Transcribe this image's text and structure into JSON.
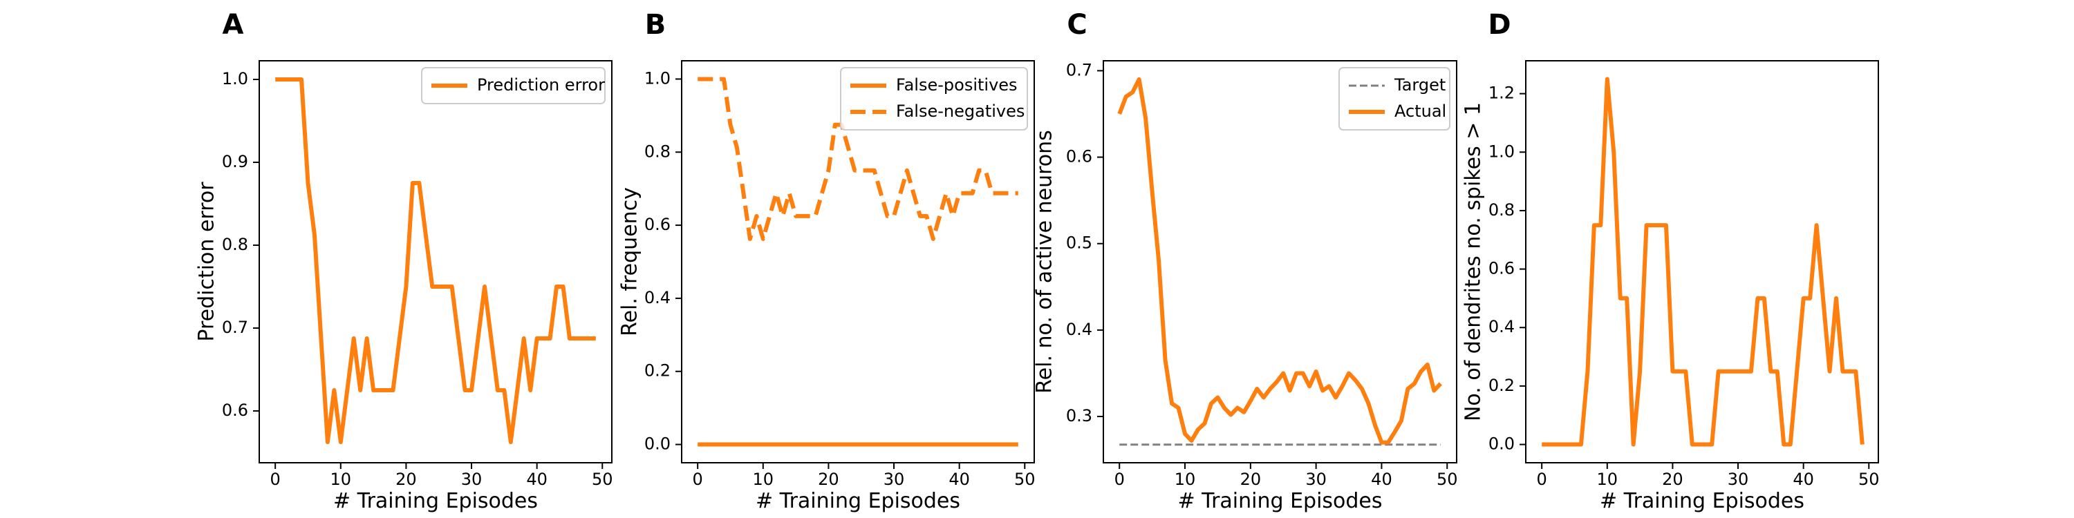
{
  "colors": {
    "series": "#ff7f0e",
    "target": "#808080",
    "axes": "#000000"
  },
  "chart_data": [
    {
      "panel": "A",
      "type": "line",
      "xlabel": "# Training Episodes",
      "ylabel": "Prediction error",
      "xlim": [
        -2.45,
        51.45
      ],
      "ylim": [
        0.5375,
        1.0225
      ],
      "xticks": [
        0,
        10,
        20,
        30,
        40,
        50
      ],
      "yticks": [
        0.6,
        0.7,
        0.8,
        0.9,
        1.0
      ],
      "ytick_labels": [
        "0.6",
        "0.7",
        "0.8",
        "0.9",
        "1.0"
      ],
      "legend": "upper right",
      "series": [
        {
          "name": "Prediction error",
          "style": "solid",
          "x": [
            0,
            1,
            2,
            3,
            4,
            5,
            6,
            7,
            8,
            9,
            10,
            11,
            12,
            13,
            14,
            15,
            16,
            17,
            18,
            19,
            20,
            21,
            22,
            23,
            24,
            25,
            26,
            27,
            28,
            29,
            30,
            31,
            32,
            33,
            34,
            35,
            36,
            37,
            38,
            39,
            40,
            41,
            42,
            43,
            44,
            45,
            46,
            47,
            48,
            49
          ],
          "y": [
            1.0,
            1.0,
            1.0,
            1.0,
            1.0,
            0.875,
            0.8125,
            0.6875,
            0.5625,
            0.625,
            0.5625,
            0.625,
            0.6875,
            0.625,
            0.6875,
            0.625,
            0.625,
            0.625,
            0.625,
            0.6875,
            0.75,
            0.875,
            0.875,
            0.8125,
            0.75,
            0.75,
            0.75,
            0.75,
            0.6875,
            0.625,
            0.625,
            0.6875,
            0.75,
            0.6875,
            0.625,
            0.625,
            0.5625,
            0.625,
            0.6875,
            0.625,
            0.6875,
            0.6875,
            0.6875,
            0.75,
            0.75,
            0.6875,
            0.6875,
            0.6875,
            0.6875,
            0.6875
          ]
        }
      ]
    },
    {
      "panel": "B",
      "type": "line",
      "xlabel": "# Training Episodes",
      "ylabel": "Rel. frequency",
      "xlim": [
        -2.45,
        51.45
      ],
      "ylim": [
        -0.05,
        1.05
      ],
      "xticks": [
        0,
        10,
        20,
        30,
        40,
        50
      ],
      "yticks": [
        0.0,
        0.2,
        0.4,
        0.6,
        0.8,
        1.0
      ],
      "ytick_labels": [
        "0.0",
        "0.2",
        "0.4",
        "0.6",
        "0.8",
        "1.0"
      ],
      "legend": "upper right",
      "series": [
        {
          "name": "False-positives",
          "style": "solid",
          "x": [
            0,
            49
          ],
          "y": [
            0,
            0
          ]
        },
        {
          "name": "False-negatives",
          "style": "dashed",
          "x": [
            0,
            1,
            2,
            3,
            4,
            5,
            6,
            7,
            8,
            9,
            10,
            11,
            12,
            13,
            14,
            15,
            16,
            17,
            18,
            19,
            20,
            21,
            22,
            23,
            24,
            25,
            26,
            27,
            28,
            29,
            30,
            31,
            32,
            33,
            34,
            35,
            36,
            37,
            38,
            39,
            40,
            41,
            42,
            43,
            44,
            45,
            46,
            47,
            48,
            49
          ],
          "y": [
            1.0,
            1.0,
            1.0,
            1.0,
            1.0,
            0.875,
            0.8125,
            0.6875,
            0.5625,
            0.625,
            0.5625,
            0.625,
            0.6875,
            0.625,
            0.6875,
            0.625,
            0.625,
            0.625,
            0.625,
            0.6875,
            0.75,
            0.875,
            0.875,
            0.8125,
            0.75,
            0.75,
            0.75,
            0.75,
            0.6875,
            0.625,
            0.625,
            0.6875,
            0.75,
            0.6875,
            0.625,
            0.625,
            0.5625,
            0.625,
            0.6875,
            0.625,
            0.6875,
            0.6875,
            0.6875,
            0.75,
            0.75,
            0.6875,
            0.6875,
            0.6875,
            0.6875,
            0.6875
          ]
        }
      ]
    },
    {
      "panel": "C",
      "type": "line",
      "xlabel": "# Training Episodes",
      "ylabel": "Rel. no. of active neurons",
      "xlim": [
        -2.45,
        51.45
      ],
      "ylim": [
        0.2465,
        0.7115
      ],
      "xticks": [
        0,
        10,
        20,
        30,
        40,
        50
      ],
      "yticks": [
        0.3,
        0.4,
        0.5,
        0.6,
        0.7
      ],
      "ytick_labels": [
        "0.3",
        "0.4",
        "0.5",
        "0.6",
        "0.7"
      ],
      "legend": "upper right",
      "series": [
        {
          "name": "Target",
          "style": "dashed-thin",
          "x": [
            0,
            49
          ],
          "y": [
            0.2675,
            0.2675
          ]
        },
        {
          "name": "Actual",
          "style": "solid",
          "x": [
            0,
            1,
            2,
            3,
            4,
            5,
            6,
            7,
            8,
            9,
            10,
            11,
            12,
            13,
            14,
            15,
            16,
            17,
            18,
            19,
            20,
            21,
            22,
            23,
            24,
            25,
            26,
            27,
            28,
            29,
            30,
            31,
            32,
            33,
            34,
            35,
            36,
            37,
            38,
            39,
            40,
            41,
            42,
            43,
            44,
            45,
            46,
            47,
            48,
            49
          ],
          "y": [
            0.65,
            0.67,
            0.675,
            0.69,
            0.645,
            0.56,
            0.48,
            0.365,
            0.315,
            0.31,
            0.28,
            0.272,
            0.285,
            0.292,
            0.315,
            0.322,
            0.31,
            0.302,
            0.31,
            0.305,
            0.318,
            0.332,
            0.322,
            0.332,
            0.34,
            0.35,
            0.33,
            0.35,
            0.35,
            0.335,
            0.352,
            0.33,
            0.335,
            0.322,
            0.335,
            0.35,
            0.342,
            0.332,
            0.315,
            0.29,
            0.27,
            0.27,
            0.282,
            0.295,
            0.332,
            0.338,
            0.352,
            0.36,
            0.33,
            0.338
          ]
        }
      ]
    },
    {
      "panel": "D",
      "type": "line",
      "xlabel": "# Training Episodes",
      "ylabel": "No. of dendrites no. spikes > 1",
      "xlim": [
        -2.45,
        51.45
      ],
      "ylim": [
        -0.0625,
        1.3125
      ],
      "xticks": [
        0,
        10,
        20,
        30,
        40,
        50
      ],
      "yticks": [
        0.0,
        0.2,
        0.4,
        0.6,
        0.8,
        1.0,
        1.2
      ],
      "ytick_labels": [
        "0.0",
        "0.2",
        "0.4",
        "0.6",
        "0.8",
        "1.0",
        "1.2"
      ],
      "legend": "none",
      "series": [
        {
          "name": "",
          "style": "solid",
          "x": [
            0,
            1,
            2,
            3,
            4,
            5,
            6,
            7,
            8,
            9,
            10,
            11,
            12,
            13,
            14,
            15,
            16,
            17,
            18,
            19,
            20,
            21,
            22,
            23,
            24,
            25,
            26,
            27,
            28,
            29,
            30,
            31,
            32,
            33,
            34,
            35,
            36,
            37,
            38,
            39,
            40,
            41,
            42,
            43,
            44,
            45,
            46,
            47,
            48,
            49
          ],
          "y": [
            0,
            0,
            0,
            0,
            0,
            0,
            0,
            0.25,
            0.75,
            0.75,
            1.25,
            1.0,
            0.5,
            0.5,
            0,
            0.25,
            0.75,
            0.75,
            0.75,
            0.75,
            0.25,
            0.25,
            0.25,
            0,
            0,
            0,
            0,
            0.25,
            0.25,
            0.25,
            0.25,
            0.25,
            0.25,
            0.5,
            0.5,
            0.25,
            0.25,
            0,
            0,
            0.25,
            0.5,
            0.5,
            0.75,
            0.5,
            0.25,
            0.5,
            0.25,
            0.25,
            0.25,
            0
          ]
        }
      ]
    }
  ]
}
